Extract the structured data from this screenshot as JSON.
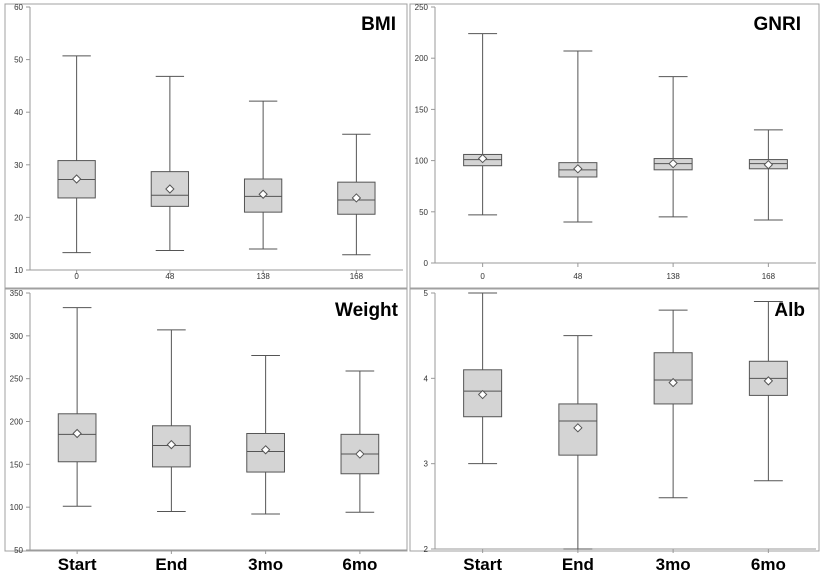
{
  "chart_data": [
    {
      "type": "box",
      "title": "BMI",
      "categories": [
        "0",
        "48",
        "138",
        "168"
      ],
      "ylim": [
        10,
        60
      ],
      "yticks": [
        "10",
        "20",
        "30",
        "40",
        "50",
        "60"
      ],
      "boxes": [
        {
          "min": 13.3,
          "q1": 23.7,
          "median": 27.2,
          "q3": 30.8,
          "max": 50.7,
          "mean": 27.3
        },
        {
          "min": 13.7,
          "q1": 22.1,
          "median": 24.2,
          "q3": 28.7,
          "max": 46.8,
          "mean": 25.4
        },
        {
          "min": 14.0,
          "q1": 21.0,
          "median": 24.0,
          "q3": 27.3,
          "max": 42.1,
          "mean": 24.4
        },
        {
          "min": 12.9,
          "q1": 20.6,
          "median": 23.3,
          "q3": 26.7,
          "max": 35.8,
          "mean": 23.7
        }
      ]
    },
    {
      "type": "box",
      "title": "GNRI",
      "categories": [
        "0",
        "48",
        "138",
        "168"
      ],
      "ylim": [
        0,
        250
      ],
      "yticks": [
        "0",
        "50",
        "100",
        "150",
        "200",
        "250"
      ],
      "boxes": [
        {
          "min": 47,
          "q1": 95,
          "median": 101,
          "q3": 106,
          "max": 224,
          "mean": 102
        },
        {
          "min": 40,
          "q1": 84,
          "median": 91,
          "q3": 98,
          "max": 207,
          "mean": 92
        },
        {
          "min": 45,
          "q1": 91,
          "median": 97,
          "q3": 102,
          "max": 182,
          "mean": 97
        },
        {
          "min": 42,
          "q1": 92,
          "median": 97,
          "q3": 101,
          "max": 130,
          "mean": 96
        }
      ]
    },
    {
      "type": "box",
      "title": "Weight",
      "categories": [
        "Start",
        "End",
        "3mo",
        "6mo"
      ],
      "ylim": [
        50,
        350
      ],
      "yticks": [
        "50",
        "100",
        "150",
        "200",
        "250",
        "300",
        "350"
      ],
      "boxes": [
        {
          "min": 101,
          "q1": 153,
          "median": 185,
          "q3": 209,
          "max": 333,
          "mean": 186
        },
        {
          "min": 95,
          "q1": 147,
          "median": 172,
          "q3": 195,
          "max": 307,
          "mean": 173
        },
        {
          "min": 92,
          "q1": 141,
          "median": 165,
          "q3": 186,
          "max": 277,
          "mean": 167
        },
        {
          "min": 94,
          "q1": 139,
          "median": 162,
          "q3": 185,
          "max": 259,
          "mean": 162
        }
      ]
    },
    {
      "type": "box",
      "title": "Alb",
      "categories": [
        "Start",
        "End",
        "3mo",
        "6mo"
      ],
      "ylim": [
        2,
        5
      ],
      "yticks": [
        "2",
        "3",
        "4",
        "5"
      ],
      "boxes": [
        {
          "min": 3.0,
          "q1": 3.55,
          "median": 3.85,
          "q3": 4.1,
          "max": 5.0,
          "mean": 3.81
        },
        {
          "min": 2.0,
          "q1": 3.1,
          "median": 3.5,
          "q3": 3.7,
          "max": 4.5,
          "mean": 3.42
        },
        {
          "min": 2.6,
          "q1": 3.7,
          "median": 3.98,
          "q3": 4.3,
          "max": 4.8,
          "mean": 3.95
        },
        {
          "min": 2.8,
          "q1": 3.8,
          "median": 4.0,
          "q3": 4.2,
          "max": 4.9,
          "mean": 3.97
        }
      ]
    }
  ],
  "colors": {
    "box_fill": "#d4d4d4",
    "stroke": "#555555",
    "axis": "#999999",
    "panel_border": "#a0a0a0"
  }
}
